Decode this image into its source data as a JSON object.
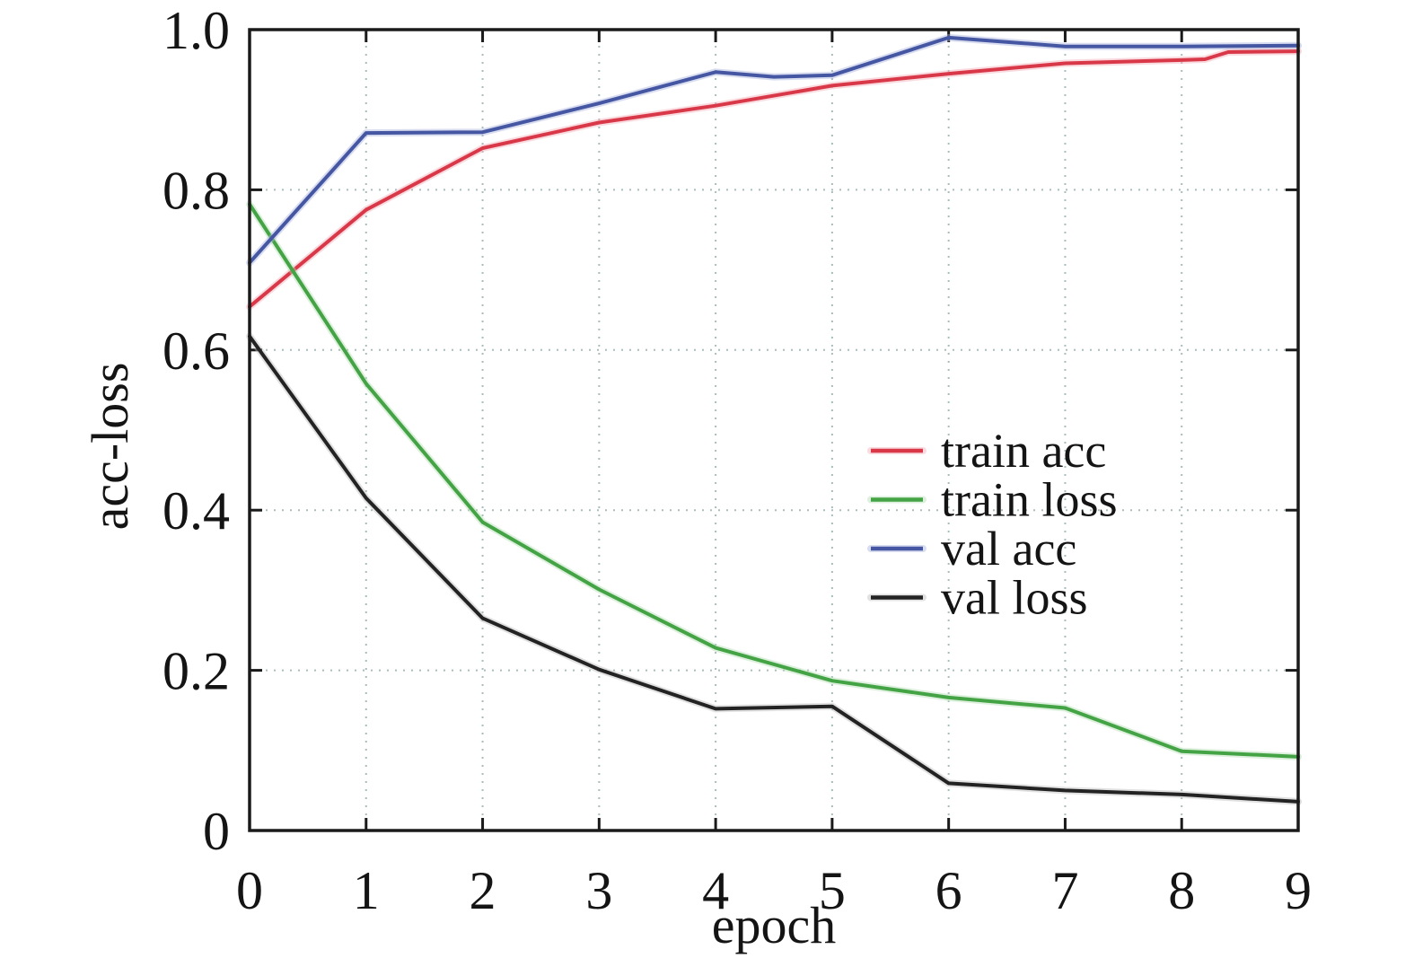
{
  "chart_data": {
    "type": "line",
    "title": "",
    "xlabel": "epoch",
    "ylabel": "acc-loss",
    "xlim": [
      0,
      9
    ],
    "ylim": [
      0,
      1.0
    ],
    "grid": true,
    "legend_position": "inside-right-middle",
    "x_ticks": [
      {
        "label": "0",
        "value": 0
      },
      {
        "label": "1",
        "value": 1
      },
      {
        "label": "2",
        "value": 2
      },
      {
        "label": "3",
        "value": 3
      },
      {
        "label": "4",
        "value": 4
      },
      {
        "label": "5",
        "value": 5
      },
      {
        "label": "6",
        "value": 6
      },
      {
        "label": "7",
        "value": 7
      },
      {
        "label": "8",
        "value": 8
      },
      {
        "label": "9",
        "value": 9
      }
    ],
    "y_ticks": [
      {
        "label": "0",
        "value": 0
      },
      {
        "label": "0.2",
        "value": 0.2
      },
      {
        "label": "0.4",
        "value": 0.4
      },
      {
        "label": "0.6",
        "value": 0.6
      },
      {
        "label": "0.8",
        "value": 0.8
      },
      {
        "label": "1.0",
        "value": 1.0
      }
    ],
    "series": [
      {
        "name": "train acc",
        "color": "#d93848",
        "halo_color": "#f1aeb8",
        "points": [
          [
            0,
            0.654
          ],
          [
            1,
            0.775
          ],
          [
            2,
            0.852
          ],
          [
            3,
            0.884
          ],
          [
            4,
            0.905
          ],
          [
            5,
            0.93
          ],
          [
            6,
            0.945
          ],
          [
            7,
            0.958
          ],
          [
            8,
            0.962
          ],
          [
            8.2,
            0.963
          ],
          [
            8.4,
            0.972
          ],
          [
            9,
            0.973
          ]
        ]
      },
      {
        "name": "train loss",
        "color": "#44a344",
        "halo_color": "#b4ddb4",
        "points": [
          [
            0,
            0.782
          ],
          [
            1,
            0.558
          ],
          [
            2,
            0.385
          ],
          [
            3,
            0.301
          ],
          [
            4,
            0.228
          ],
          [
            5,
            0.187
          ],
          [
            6,
            0.166
          ],
          [
            7,
            0.153
          ],
          [
            8,
            0.099
          ],
          [
            9,
            0.092
          ]
        ]
      },
      {
        "name": "val acc",
        "color": "#4556a3",
        "halo_color": "#aab4de",
        "points": [
          [
            0,
            0.709
          ],
          [
            1,
            0.871
          ],
          [
            2,
            0.872
          ],
          [
            3,
            0.908
          ],
          [
            4,
            0.947
          ],
          [
            4.5,
            0.941
          ],
          [
            5,
            0.943
          ],
          [
            6,
            0.99
          ],
          [
            7,
            0.979
          ],
          [
            8,
            0.979
          ],
          [
            9,
            0.98
          ]
        ]
      },
      {
        "name": "val loss",
        "color": "#232323",
        "halo_color": "#bdbdbd",
        "points": [
          [
            0,
            0.617
          ],
          [
            1,
            0.415
          ],
          [
            2,
            0.265
          ],
          [
            3,
            0.201
          ],
          [
            4,
            0.152
          ],
          [
            5,
            0.155
          ],
          [
            6,
            0.059
          ],
          [
            7,
            0.05
          ],
          [
            8,
            0.045
          ],
          [
            9,
            0.036
          ]
        ]
      }
    ],
    "style": {
      "grid_color": "#a9bdbd",
      "axis_color": "#1a1a1a",
      "background": "#ffffff"
    }
  }
}
